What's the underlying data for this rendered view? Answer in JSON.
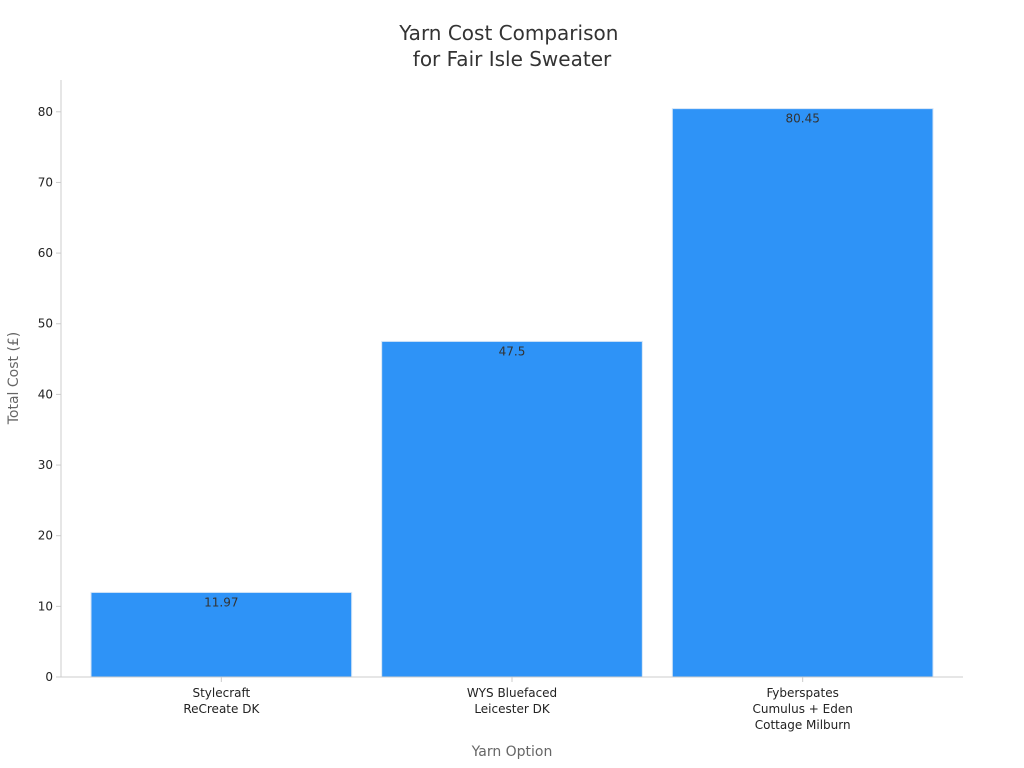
{
  "chart_data": {
    "type": "bar",
    "title": [
      "Yarn Cost Comparison",
      "for Fair Isle Sweater"
    ],
    "xlabel": "Yarn Option",
    "ylabel": "Total Cost (£)",
    "categories": [
      [
        "Stylecraft",
        "ReCreate DK"
      ],
      [
        "WYS Bluefaced",
        "Leicester DK"
      ],
      [
        "Fyberspates",
        "Cumulus + Eden",
        "Cottage Milburn"
      ]
    ],
    "values": [
      11.97,
      47.5,
      80.45
    ],
    "data_labels": [
      "11.97",
      "47.5",
      "80.45"
    ],
    "ylim": [
      0,
      84.5
    ],
    "yticks": [
      0,
      10,
      20,
      30,
      40,
      50,
      60,
      70,
      80
    ],
    "bar_color": "#2E93F7",
    "grid": false,
    "legend": "none"
  }
}
